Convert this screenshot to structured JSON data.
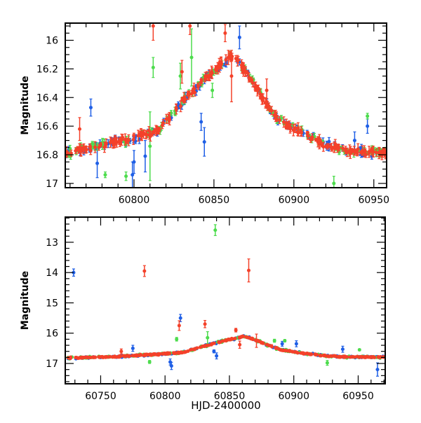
{
  "colors": {
    "blue": "#1f5fe6",
    "green": "#4ddc4d",
    "red": "#f4412a"
  },
  "chart_data": [
    {
      "type": "scatter",
      "title": "",
      "xlabel": "",
      "ylabel": "Magnitude",
      "xlim": [
        60757,
        60958
      ],
      "ylim": [
        17.03,
        15.88
      ],
      "y_inverted": true,
      "xticks": [
        60800,
        60850,
        60900,
        60950
      ],
      "xtick_labels": [
        "60800",
        "60850",
        "60900",
        "60950"
      ],
      "yticks": [
        16,
        16.2,
        16.4,
        16.6,
        16.8,
        17
      ],
      "ytick_labels": [
        "16",
        "16.2",
        "16.4",
        "16.6",
        "16.8",
        "17"
      ],
      "lightcurve_knots": [
        [
          60722,
          16.82
        ],
        [
          60760,
          16.78
        ],
        [
          60800,
          16.68
        ],
        [
          60815,
          16.63
        ],
        [
          60830,
          16.43
        ],
        [
          60845,
          16.26
        ],
        [
          60862,
          16.1
        ],
        [
          60870,
          16.22
        ],
        [
          60880,
          16.4
        ],
        [
          60890,
          16.55
        ],
        [
          60905,
          16.65
        ],
        [
          60920,
          16.73
        ],
        [
          60935,
          16.78
        ],
        [
          60972,
          16.79
        ]
      ],
      "series": [
        {
          "name": "blue",
          "color_key": "blue",
          "outliers": [
            [
              60800,
              16.85,
              0.08
            ],
            [
              60799,
              16.94,
              0.09
            ],
            [
              60844,
              16.71,
              0.1
            ],
            [
              60842,
              16.57,
              0.06
            ],
            [
              60773,
              16.47,
              0.06
            ],
            [
              60866,
              15.98,
              0.08
            ],
            [
              60946,
              16.6,
              0.05
            ],
            [
              60938,
              16.7,
              0.06
            ],
            [
              60777,
              16.86,
              0.1
            ],
            [
              60807,
              16.81,
              0.11
            ]
          ]
        },
        {
          "name": "green",
          "color_key": "green",
          "outliers": [
            [
              60812,
              16.19,
              0.07
            ],
            [
              60836,
              16.12,
              0.2
            ],
            [
              60849,
              16.35,
              0.05
            ],
            [
              60925,
              17.0,
              0.05
            ],
            [
              60795,
              16.95,
              0.03
            ],
            [
              60829,
              16.25,
              0.09
            ],
            [
              60946,
              16.53,
              0.02
            ],
            [
              60810,
              16.74,
              0.24
            ],
            [
              60782,
              16.94,
              0.02
            ]
          ]
        },
        {
          "name": "red",
          "color_key": "red",
          "outliers": [
            [
              60835,
              15.9,
              0.06
            ],
            [
              60857,
              15.95,
              0.06
            ],
            [
              60861,
              16.25,
              0.18
            ],
            [
              60830,
              16.22,
              0.08
            ],
            [
              60766,
              16.62,
              0.08
            ],
            [
              60859,
              16.12,
              0.05
            ],
            [
              60812,
              15.9,
              0.1
            ],
            [
              60883,
              16.35,
              0.08
            ]
          ]
        }
      ]
    },
    {
      "type": "scatter",
      "title": "",
      "xlabel": "HJD-2400000",
      "ylabel": "Magnitude",
      "xlim": [
        60722.5,
        60971
      ],
      "ylim": [
        17.67,
        12.17
      ],
      "y_inverted": true,
      "xticks": [
        60750,
        60800,
        60850,
        60900,
        60950
      ],
      "xtick_labels": [
        "60750",
        "60800",
        "60850",
        "60900",
        "60950"
      ],
      "yticks": [
        13,
        14,
        15,
        16,
        17
      ],
      "ytick_labels": [
        "13",
        "14",
        "15",
        "16",
        "17"
      ],
      "lightcurve_knots": [
        [
          60722,
          16.82
        ],
        [
          60760,
          16.78
        ],
        [
          60800,
          16.68
        ],
        [
          60815,
          16.63
        ],
        [
          60830,
          16.43
        ],
        [
          60845,
          16.26
        ],
        [
          60862,
          16.1
        ],
        [
          60870,
          16.22
        ],
        [
          60880,
          16.4
        ],
        [
          60890,
          16.55
        ],
        [
          60905,
          16.65
        ],
        [
          60920,
          16.73
        ],
        [
          60935,
          16.78
        ],
        [
          60972,
          16.79
        ]
      ],
      "series": [
        {
          "name": "blue",
          "color_key": "blue",
          "outliers": [
            [
              60729,
              14.0,
              0.12
            ],
            [
              60812,
              15.5,
              0.12
            ],
            [
              60804,
              16.95,
              0.1
            ],
            [
              60805,
              17.08,
              0.12
            ],
            [
              60838,
              16.6,
              0.05
            ],
            [
              60840,
              16.75,
              0.1
            ],
            [
              60965,
              17.2,
              0.22
            ],
            [
              60775,
              16.5,
              0.1
            ],
            [
              60902,
              16.35,
              0.1
            ],
            [
              60938,
              16.53,
              0.1
            ],
            [
              60891,
              16.35,
              0.08
            ]
          ]
        },
        {
          "name": "green",
          "color_key": "green",
          "outliers": [
            [
              60839,
              12.6,
              0.18
            ],
            [
              60833,
              16.15,
              0.2
            ],
            [
              60809,
              16.2,
              0.06
            ],
            [
              60788,
              16.95,
              0.05
            ],
            [
              60926,
              16.98,
              0.08
            ],
            [
              60951,
              16.55,
              0.03
            ],
            [
              60893,
              16.25,
              0.04
            ],
            [
              60885,
              16.25,
              0.05
            ]
          ]
        },
        {
          "name": "red",
          "color_key": "red",
          "outliers": [
            [
              60784,
              13.95,
              0.18
            ],
            [
              60865,
              13.93,
              0.38
            ],
            [
              60811,
              15.75,
              0.16
            ],
            [
              60831,
              15.7,
              0.12
            ],
            [
              60855,
              15.9,
              0.06
            ],
            [
              60858,
              16.38,
              0.12
            ],
            [
              60871,
              16.25,
              0.22
            ],
            [
              60766,
              16.6,
              0.08
            ]
          ]
        }
      ]
    }
  ]
}
